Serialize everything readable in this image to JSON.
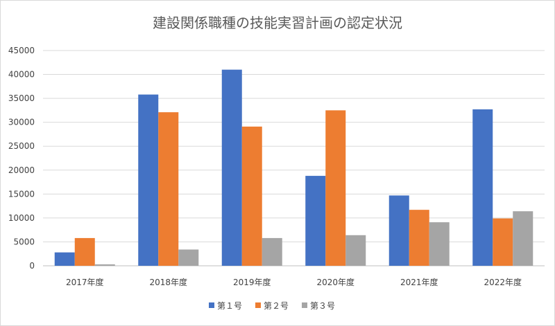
{
  "chart_data": {
    "type": "bar",
    "title": "建設関係職種の技能実習計画の認定状況",
    "categories": [
      "2017年度",
      "2018年度",
      "2019年度",
      "2020年度",
      "2021年度",
      "2022年度"
    ],
    "series": [
      {
        "name": "第１号",
        "values": [
          2800,
          35800,
          41000,
          18800,
          14700,
          32700
        ]
      },
      {
        "name": "第２号",
        "values": [
          5800,
          32100,
          29100,
          32500,
          11700,
          9900
        ]
      },
      {
        "name": "第３号",
        "values": [
          300,
          3400,
          5800,
          6400,
          9100,
          11400
        ]
      }
    ],
    "ylim": [
      0,
      45000
    ],
    "yticks": [
      0,
      5000,
      10000,
      15000,
      20000,
      25000,
      30000,
      35000,
      40000,
      45000
    ],
    "grid": true,
    "legend": "bottom",
    "colors": [
      "#4472c4",
      "#ed7d31",
      "#a5a5a5"
    ]
  }
}
